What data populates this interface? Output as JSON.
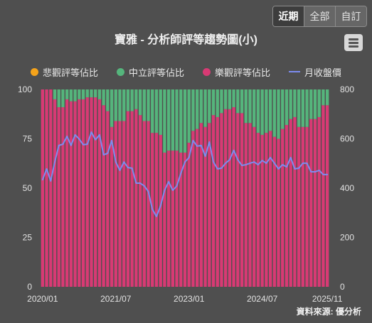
{
  "range_buttons": [
    {
      "label": "近期",
      "selected": true
    },
    {
      "label": "全部",
      "selected": false
    },
    {
      "label": "自訂",
      "selected": false
    }
  ],
  "title": "寶雅 - 分析師評等趨勢圖(小)",
  "menu": {
    "icon": "hamburger-menu-icon"
  },
  "source": "資料來源: 優分析",
  "chart_data": {
    "type": "bar",
    "stacked": true,
    "x": [
      "2020/01",
      "2020/02",
      "2020/03",
      "2020/04",
      "2020/05",
      "2020/06",
      "2020/07",
      "2020/08",
      "2020/09",
      "2020/10",
      "2020/11",
      "2020/12",
      "2021/01",
      "2021/02",
      "2021/03",
      "2021/04",
      "2021/05",
      "2021/06",
      "2021/07",
      "2021/08",
      "2021/09",
      "2021/10",
      "2021/11",
      "2021/12",
      "2022/01",
      "2022/02",
      "2022/03",
      "2022/04",
      "2022/05",
      "2022/06",
      "2022/07",
      "2022/08",
      "2022/09",
      "2022/10",
      "2022/11",
      "2022/12",
      "2023/01",
      "2023/02",
      "2023/03",
      "2023/04",
      "2023/05",
      "2023/06",
      "2023/07",
      "2023/08",
      "2023/09",
      "2023/10",
      "2023/11",
      "2023/12",
      "2024/01",
      "2024/02",
      "2024/03",
      "2024/04",
      "2024/05",
      "2024/06",
      "2024/07",
      "2024/08",
      "2024/09",
      "2024/10",
      "2024/11",
      "2024/12",
      "2025/01",
      "2025/02",
      "2025/03",
      "2025/04",
      "2025/05",
      "2025/06",
      "2025/07",
      "2025/08",
      "2025/09",
      "2025/10",
      "2025/11"
    ],
    "xticks": [
      "2020/01",
      "2021/07",
      "2023/01",
      "2024/07",
      "2025/11"
    ],
    "series": [
      {
        "name": "悲觀評等佔比",
        "type": "bar",
        "axis": "left",
        "color": "#f5a31a",
        "values": [
          0,
          0,
          0,
          0,
          0,
          0,
          0,
          0,
          0,
          0,
          0,
          0,
          0,
          0,
          0,
          0,
          0,
          0,
          0,
          0,
          0,
          0,
          0,
          0,
          0,
          0,
          0,
          0,
          0,
          0,
          0,
          0,
          0,
          0,
          0,
          0,
          0,
          0,
          0,
          0,
          0,
          0,
          0,
          0,
          0,
          0,
          0,
          0,
          0,
          0,
          0,
          0,
          0,
          0,
          0,
          0,
          0,
          0,
          0,
          0,
          0,
          0,
          0,
          0,
          0,
          0,
          0,
          0,
          0,
          0,
          0
        ]
      },
      {
        "name": "中立評等佔比",
        "type": "bar",
        "axis": "left",
        "color": "#55b57c",
        "values": [
          0,
          0,
          0,
          5,
          9,
          9,
          5,
          6,
          6,
          5,
          5,
          4,
          4,
          4,
          5,
          8,
          11,
          19,
          16,
          16,
          16,
          11,
          11,
          10,
          13,
          16,
          16,
          22,
          22,
          23,
          32,
          31,
          31,
          31,
          32,
          32,
          27,
          21,
          20,
          17,
          19,
          17,
          13,
          14,
          12,
          10,
          10,
          9,
          12,
          12,
          17,
          17,
          19,
          22,
          23,
          22,
          21,
          24,
          25,
          20,
          18,
          15,
          14,
          19,
          19,
          19,
          15,
          15,
          14,
          8,
          8
        ]
      },
      {
        "name": "樂觀評等佔比",
        "type": "bar",
        "axis": "left",
        "color": "#d83a74",
        "values": [
          100,
          100,
          100,
          95,
          91,
          91,
          95,
          94,
          94,
          95,
          95,
          96,
          96,
          96,
          95,
          92,
          89,
          81,
          84,
          84,
          84,
          89,
          89,
          90,
          87,
          84,
          84,
          78,
          78,
          77,
          68,
          69,
          69,
          69,
          68,
          68,
          73,
          79,
          80,
          83,
          81,
          83,
          87,
          86,
          88,
          90,
          90,
          91,
          88,
          88,
          83,
          83,
          81,
          78,
          77,
          78,
          79,
          76,
          75,
          80,
          82,
          85,
          86,
          81,
          81,
          81,
          85,
          85,
          86,
          92,
          92
        ]
      },
      {
        "name": "月收盤價",
        "type": "line",
        "axis": "right",
        "color": "#7c8cf0",
        "values": [
          434,
          478,
          429,
          506,
          573,
          578,
          610,
          573,
          616,
          599,
          576,
          578,
          627,
          596,
          616,
          535,
          541,
          593,
          506,
          472,
          506,
          483,
          481,
          420,
          420,
          409,
          386,
          314,
          285,
          328,
          391,
          426,
          391,
          409,
          460,
          506,
          524,
          593,
          570,
          573,
          529,
          587,
          506,
          478,
          481,
          501,
          515,
          553,
          515,
          492,
          495,
          501,
          506,
          495,
          512,
          501,
          524,
          501,
          478,
          495,
          486,
          524,
          478,
          481,
          501,
          501,
          466,
          466,
          472,
          455,
          455
        ]
      }
    ],
    "ylim": [
      0,
      100
    ],
    "yticks": [
      0,
      25,
      50,
      75,
      100
    ],
    "y2lim": [
      0,
      800
    ],
    "y2ticks": [
      0,
      200,
      400,
      600,
      800
    ],
    "grid": false,
    "legend_position": "top"
  }
}
